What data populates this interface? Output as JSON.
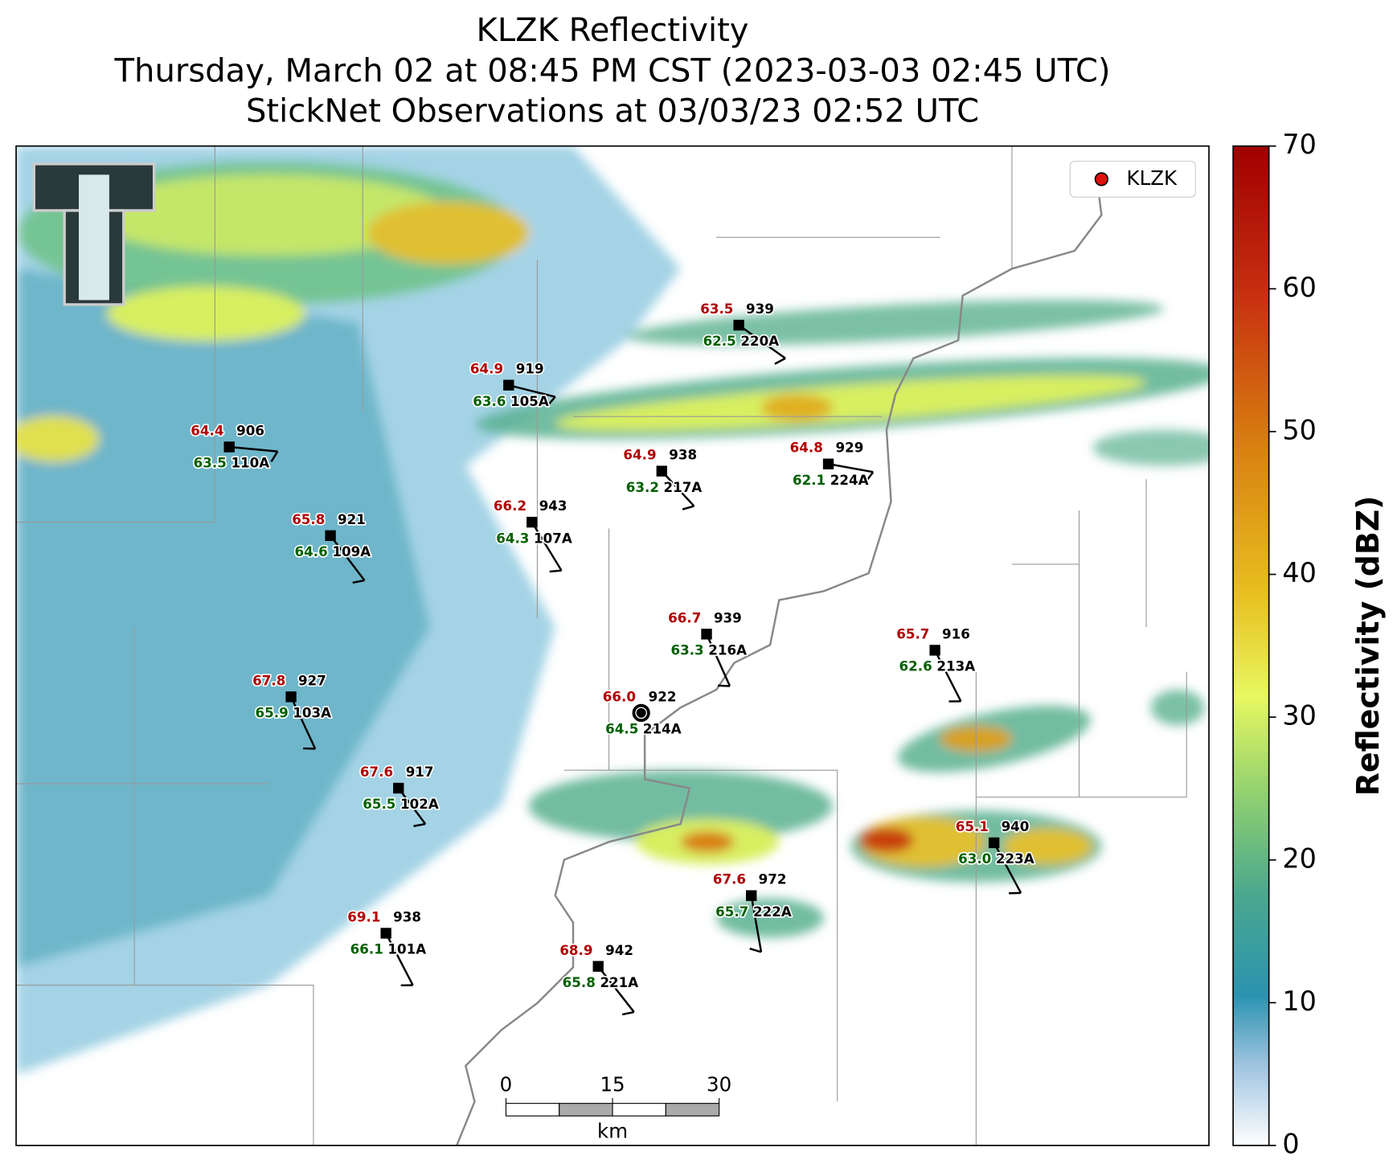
{
  "header": {
    "title": [
      "KLZK Reflectivity",
      "Thursday, March 02 at 08:45 PM CST (2023-03-03 02:45 UTC)",
      "StickNet Observations at 03/03/23 02:52 UTC"
    ]
  },
  "legend": {
    "label": "KLZK"
  },
  "colorbar": {
    "label": "Reflectivity (dBZ)",
    "lim": [
      0,
      70
    ],
    "ticks": [
      0,
      10,
      20,
      30,
      40,
      50,
      60,
      70
    ]
  },
  "scale_bar": {
    "ticks": [
      0,
      15,
      30
    ],
    "unit": "km"
  },
  "stations": [
    {
      "id": "220A",
      "temperature": "63.5",
      "dewpoint": "62.5",
      "pressure": "939"
    },
    {
      "id": "105A",
      "temperature": "64.9",
      "dewpoint": "63.6",
      "pressure": "919"
    },
    {
      "id": "110A",
      "temperature": "64.4",
      "dewpoint": "63.5",
      "pressure": "906"
    },
    {
      "id": "217A",
      "temperature": "64.9",
      "dewpoint": "63.2",
      "pressure": "938"
    },
    {
      "id": "224A",
      "temperature": "64.8",
      "dewpoint": "62.1",
      "pressure": "929"
    },
    {
      "id": "107A",
      "temperature": "66.2",
      "dewpoint": "64.3",
      "pressure": "943"
    },
    {
      "id": "109A",
      "temperature": "65.8",
      "dewpoint": "64.6",
      "pressure": "921"
    },
    {
      "id": "216A",
      "temperature": "66.7",
      "dewpoint": "63.3",
      "pressure": "939"
    },
    {
      "id": "213A",
      "temperature": "65.7",
      "dewpoint": "62.6",
      "pressure": "916"
    },
    {
      "id": "103A",
      "temperature": "67.8",
      "dewpoint": "65.9",
      "pressure": "927"
    },
    {
      "id": "214A",
      "temperature": "66.0",
      "dewpoint": "64.5",
      "pressure": "922"
    },
    {
      "id": "102A",
      "temperature": "67.6",
      "dewpoint": "65.5",
      "pressure": "917"
    },
    {
      "id": "223A",
      "temperature": "65.1",
      "dewpoint": "63.0",
      "pressure": "940"
    },
    {
      "id": "222A",
      "temperature": "67.6",
      "dewpoint": "65.7",
      "pressure": "972"
    },
    {
      "id": "101A",
      "temperature": "69.1",
      "dewpoint": "66.1",
      "pressure": "938"
    },
    {
      "id": "221A",
      "temperature": "68.9",
      "dewpoint": "65.8",
      "pressure": "942"
    }
  ]
}
